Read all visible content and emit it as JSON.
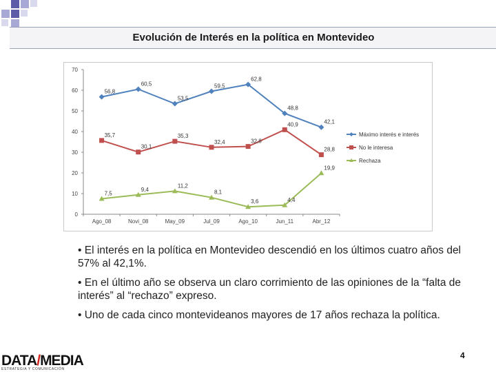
{
  "slide": {
    "title": "Evolución de Interés en la política en Montevideo",
    "bullets": [
      "• El interés en la política en Montevideo descendió en los últimos cuatro años del 57% al 42,1%.",
      "• En el último año se observa un claro corrimiento de las opiniones de la “falta de interés” al “rechazo” expreso.",
      "• Uno de cada cinco montevideanos mayores de 17 años rechaza la política."
    ],
    "page_number": "4"
  },
  "logo": {
    "text_data": "DATA",
    "text_slash": "/",
    "text_media": "MEDIA",
    "tagline": "ESTRATEGIA Y COMUNICACIÓN",
    "accent_color": "#d4231a"
  },
  "decoration": {
    "colors": [
      "#5c5ca8",
      "#a9a9d6",
      "#d9d9ee"
    ]
  },
  "chart_data": {
    "type": "line",
    "categories": [
      "Ago_08",
      "Novi_08",
      "May_09",
      "Jul_09",
      "Ago_10",
      "Jun_11",
      "Abr_12"
    ],
    "ylim": [
      0,
      70
    ],
    "yticks": [
      0,
      10,
      20,
      30,
      40,
      50,
      60,
      70
    ],
    "grid": false,
    "legend_position": "right",
    "series": [
      {
        "name": "Máximo interés e interés",
        "color": "#4f81bd",
        "marker": "diamond",
        "values": [
          56.8,
          60.5,
          53.5,
          59.5,
          62.8,
          48.8,
          42.1
        ],
        "labels": [
          "56,8",
          "60,5",
          "53,5",
          "59,5",
          "62,8",
          "48,8",
          "42,1"
        ]
      },
      {
        "name": "No le interesa",
        "color": "#c0504d",
        "marker": "square",
        "values": [
          35.7,
          30.1,
          35.3,
          32.4,
          32.8,
          40.9,
          28.8
        ],
        "labels": [
          "35,7",
          "30,1",
          "35,3",
          "32,4",
          "32,8",
          "40,9",
          "28,8"
        ]
      },
      {
        "name": "Rechaza",
        "color": "#9bbb59",
        "marker": "triangle",
        "values": [
          7.5,
          9.4,
          11.2,
          8.1,
          3.6,
          4.4,
          19.9
        ],
        "labels": [
          "7,5",
          "9,4",
          "11,2",
          "8,1",
          "3,6",
          "4,4",
          "19,9"
        ]
      }
    ]
  }
}
